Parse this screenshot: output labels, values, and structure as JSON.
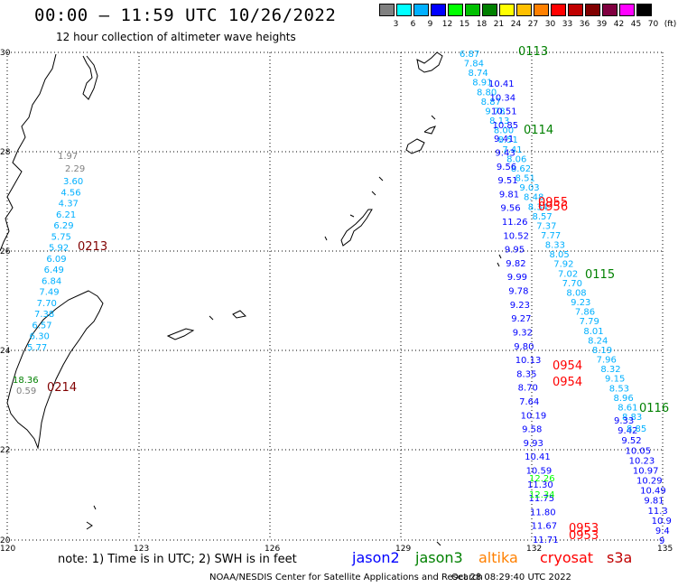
{
  "header": {
    "title": "00:00 – 11:59 UTC 10/26/2022",
    "subtitle": "12 hour collection of altimeter wave heights"
  },
  "color_scale": {
    "labels": [
      "3",
      "6",
      "9",
      "12",
      "15",
      "18",
      "21",
      "24",
      "27",
      "30",
      "33",
      "36",
      "39",
      "42",
      "45",
      "70",
      "(ft)"
    ],
    "colors": [
      "#808080",
      "#00ffff",
      "#00b0ff",
      "#0000ff",
      "#00ff00",
      "#00c000",
      "#008000",
      "#ffff00",
      "#ffc000",
      "#ff8000",
      "#ff0000",
      "#c00000",
      "#800000",
      "#800040",
      "#ff00ff",
      "#000000"
    ]
  },
  "axes": {
    "lon_ticks": [
      "120",
      "123",
      "126",
      "129",
      "132",
      "135"
    ],
    "lat_ticks": [
      "30",
      "28",
      "26",
      "24",
      "22",
      "20"
    ]
  },
  "track_labels": [
    {
      "text": "0113",
      "color": "#008000"
    },
    {
      "text": "0114",
      "color": "#008000"
    },
    {
      "text": "0955",
      "color": "#ff0000"
    },
    {
      "text": "0956",
      "color": "#ff0000"
    },
    {
      "text": "0213",
      "color": "#800000"
    },
    {
      "text": "0115",
      "color": "#008000"
    },
    {
      "text": "0954",
      "color": "#ff0000"
    },
    {
      "text": "0954",
      "color": "#ff0000"
    },
    {
      "text": "0214",
      "color": "#800000"
    },
    {
      "text": "0116",
      "color": "#008000"
    },
    {
      "text": "0953",
      "color": "#ff0000"
    },
    {
      "text": "0953",
      "color": "#ff0000"
    }
  ],
  "tracks": [
    {
      "color": "#00b0ff",
      "values": [
        "6.87",
        "7.84",
        "8.74",
        "8.91",
        "8.80",
        "8.87",
        "9.78",
        "8.13",
        "8.00",
        "8.51",
        "7.41",
        "8.06",
        "8.62",
        "8.51",
        "9.03",
        "8.48",
        "8.34",
        "8.57",
        "7.37",
        "7.77",
        "8.33",
        "8.05",
        "7.92",
        "7.02",
        "7.70",
        "8.08",
        "9.23",
        "7.86",
        "7.79",
        "8.01",
        "8.24",
        "8.19",
        "7.96",
        "8.32",
        "9.15",
        "8.53",
        "8.96",
        "8.61",
        "8.83"
      ]
    },
    {
      "color": "#0000ff",
      "values": [
        "10.41",
        "10.34",
        "10.51",
        "10.85",
        "9.41",
        "9.43",
        "9.56",
        "9.51",
        "9.81",
        "9.56",
        "11.26",
        "10.52",
        "9.95",
        "9.82",
        "9.99",
        "9.78",
        "9.23",
        "9.27",
        "9.32",
        "9.80",
        "10.13",
        "8.35",
        "8.70",
        "7.64",
        "10.19",
        "9.58",
        "9.93",
        "10.41",
        "10.59",
        "11.30",
        "11.75",
        "11.80",
        "11.67",
        "11.71"
      ]
    },
    {
      "color": "#0000ff",
      "values": [
        "9.33",
        "9.42",
        "9.52",
        "10.05",
        "10.23",
        "10.97",
        "10.29",
        "10.49",
        "9.81",
        "11.3",
        "10.9",
        "9.4",
        "9"
      ]
    },
    {
      "color": "#808080",
      "values": [
        "1.97",
        "2.29"
      ]
    },
    {
      "color": "#00b0ff",
      "values": [
        "3.60",
        "4.56",
        "4.37",
        "6.21",
        "6.29",
        "5.75",
        "5.92",
        "6.09",
        "6.49",
        "6.84",
        "7.49",
        "7.70",
        "7.38",
        "6.57",
        "6.30",
        "5.77"
      ]
    },
    {
      "color": "#008000",
      "values": [
        "18.36"
      ]
    },
    {
      "color": "#808080",
      "values": [
        "0.59"
      ]
    },
    {
      "color": "#00b0ff",
      "values": [
        "8.85"
      ]
    },
    {
      "color": "#00ff00",
      "values": [
        "12.26",
        "12.34"
      ]
    }
  ],
  "footer": {
    "note": "note: 1) Time is in UTC; 2) SWH is in feet",
    "satellites": [
      {
        "name": "jason2",
        "color": "#0000ff"
      },
      {
        "name": "jason3",
        "color": "#008000"
      },
      {
        "name": "altika",
        "color": "#ff8000"
      },
      {
        "name": "cryosat",
        "color": "#ff0000"
      },
      {
        "name": "s3a",
        "color": "#c00000"
      }
    ],
    "credit": "NOAA/NESDIS Center for Satellite Applications and Research",
    "timestamp": "Oct 28 08:29:40 UTC 2022"
  }
}
